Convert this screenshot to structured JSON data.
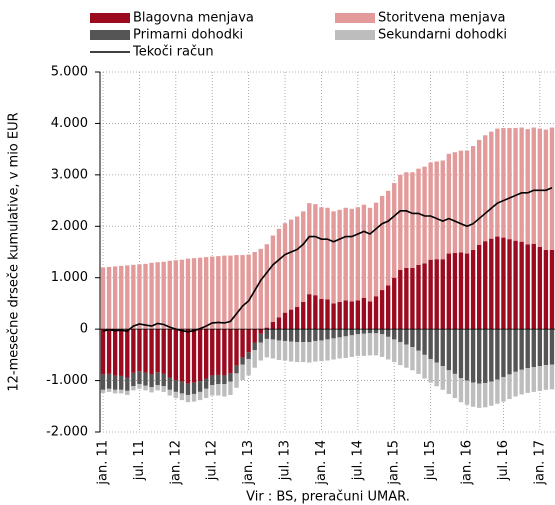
{
  "chart_data": {
    "type": "bar",
    "stacked": true,
    "grid": true,
    "ylabel": "12-mesečne drseče kumulative, v mio EUR",
    "source": "Vir : BS, preračuni  UMAR.",
    "ylim": [
      -2000,
      5000
    ],
    "yticks": [
      {
        "value": -2000,
        "label": "-2.000"
      },
      {
        "value": -1000,
        "label": "-1.000"
      },
      0,
      {
        "value": 1000,
        "label": "1.000"
      },
      {
        "value": 2000,
        "label": "2.000"
      },
      {
        "value": 3000,
        "label": "3.000"
      },
      {
        "value": 4000,
        "label": "4.000"
      },
      {
        "value": 5000,
        "label": "5.000"
      }
    ],
    "categories": [
      "jan. 11",
      null,
      null,
      null,
      null,
      null,
      "jul. 11",
      null,
      null,
      null,
      null,
      null,
      "jan. 12",
      null,
      null,
      null,
      null,
      null,
      "jul. 12",
      null,
      null,
      null,
      null,
      null,
      "jan. 13",
      null,
      null,
      null,
      null,
      null,
      "jul. 13",
      null,
      null,
      null,
      null,
      null,
      "jan. 14",
      null,
      null,
      null,
      null,
      null,
      "jul. 14",
      null,
      null,
      null,
      null,
      null,
      "jan. 15",
      null,
      null,
      null,
      null,
      null,
      "jul. 15",
      null,
      null,
      null,
      null,
      null,
      "jan. 16",
      null,
      null,
      null,
      null,
      null,
      "jul. 16",
      null,
      null,
      null,
      null,
      null,
      "jan. 17",
      null,
      null
    ],
    "series": [
      {
        "name": "Blagovna menjava",
        "color": "#9b0a1e",
        "type": "bar",
        "values": [
          -880,
          -870,
          -900,
          -910,
          -940,
          -850,
          -820,
          -850,
          -880,
          -840,
          -870,
          -940,
          -990,
          -1020,
          -1060,
          -1040,
          -1010,
          -960,
          -900,
          -890,
          -900,
          -860,
          -710,
          -550,
          -450,
          -260,
          -90,
          30,
          140,
          230,
          320,
          380,
          430,
          530,
          680,
          660,
          590,
          580,
          500,
          530,
          560,
          540,
          560,
          610,
          540,
          640,
          760,
          850,
          1000,
          1150,
          1190,
          1190,
          1250,
          1280,
          1350,
          1360,
          1360,
          1470,
          1480,
          1490,
          1470,
          1540,
          1640,
          1710,
          1760,
          1800,
          1780,
          1750,
          1720,
          1700,
          1650,
          1660,
          1600,
          1540,
          1540
        ]
      },
      {
        "name": "Storitvena menjava",
        "color": "#e39a9a",
        "type": "bar",
        "values": [
          1200,
          1210,
          1220,
          1230,
          1240,
          1250,
          1260,
          1270,
          1290,
          1300,
          1310,
          1330,
          1340,
          1350,
          1370,
          1380,
          1390,
          1400,
          1410,
          1420,
          1430,
          1430,
          1440,
          1440,
          1450,
          1500,
          1560,
          1620,
          1680,
          1720,
          1740,
          1750,
          1760,
          1760,
          1770,
          1770,
          1780,
          1780,
          1790,
          1790,
          1800,
          1800,
          1810,
          1810,
          1820,
          1820,
          1830,
          1840,
          1840,
          1850,
          1860,
          1860,
          1870,
          1880,
          1890,
          1900,
          1920,
          1940,
          1960,
          1980,
          2000,
          2020,
          2040,
          2060,
          2080,
          2100,
          2130,
          2160,
          2190,
          2220,
          2240,
          2260,
          2300,
          2340,
          2380
        ]
      },
      {
        "name": "Primarni dohodki",
        "color": "#555555",
        "type": "bar",
        "values": [
          -300,
          -290,
          -280,
          -270,
          -260,
          -260,
          -250,
          -250,
          -250,
          -250,
          -240,
          -240,
          -230,
          -230,
          -220,
          -220,
          -210,
          -200,
          -190,
          -180,
          -170,
          -160,
          -150,
          -140,
          -130,
          -150,
          -170,
          -190,
          -200,
          -220,
          -230,
          -240,
          -250,
          -250,
          -250,
          -230,
          -220,
          -200,
          -180,
          -160,
          -140,
          -120,
          -100,
          -90,
          -80,
          -80,
          -100,
          -150,
          -200,
          -250,
          -300,
          -350,
          -420,
          -500,
          -580,
          -650,
          -720,
          -800,
          -870,
          -950,
          -1000,
          -1040,
          -1060,
          -1050,
          -1020,
          -980,
          -930,
          -880,
          -830,
          -790,
          -760,
          -740,
          -720,
          -700,
          -690
        ]
      },
      {
        "name": "Sekundarni dohodki",
        "color": "#bdbdbd",
        "type": "bar",
        "values": [
          -60,
          -60,
          -70,
          -70,
          -80,
          -80,
          -90,
          -90,
          -100,
          -100,
          -110,
          -110,
          -120,
          -130,
          -140,
          -150,
          -160,
          -180,
          -200,
          -220,
          -240,
          -260,
          -280,
          -300,
          -320,
          -340,
          -350,
          -360,
          -370,
          -380,
          -380,
          -390,
          -390,
          -390,
          -400,
          -400,
          -400,
          -410,
          -410,
          -410,
          -420,
          -420,
          -420,
          -430,
          -430,
          -430,
          -440,
          -440,
          -440,
          -450,
          -450,
          -450,
          -450,
          -460,
          -460,
          -460,
          -460,
          -460,
          -470,
          -470,
          -470,
          -470,
          -470,
          -470,
          -470,
          -470,
          -480,
          -480,
          -480,
          -480,
          -480,
          -480,
          -480,
          -480,
          -480
        ]
      },
      {
        "name": "Tekoči račun",
        "color": "#000000",
        "type": "line",
        "values": [
          -40,
          -10,
          -30,
          -20,
          -40,
          60,
          100,
          80,
          60,
          110,
          90,
          40,
          0,
          -30,
          -50,
          -30,
          10,
          60,
          120,
          130,
          120,
          150,
          300,
          450,
          550,
          750,
          950,
          1100,
          1250,
          1350,
          1450,
          1500,
          1550,
          1650,
          1800,
          1800,
          1750,
          1750,
          1700,
          1750,
          1800,
          1800,
          1850,
          1900,
          1850,
          1950,
          2050,
          2100,
          2200,
          2300,
          2300,
          2250,
          2250,
          2200,
          2200,
          2150,
          2100,
          2150,
          2100,
          2050,
          2000,
          2050,
          2150,
          2250,
          2350,
          2450,
          2500,
          2550,
          2600,
          2650,
          2650,
          2700,
          2700,
          2700,
          2750
        ]
      }
    ]
  }
}
